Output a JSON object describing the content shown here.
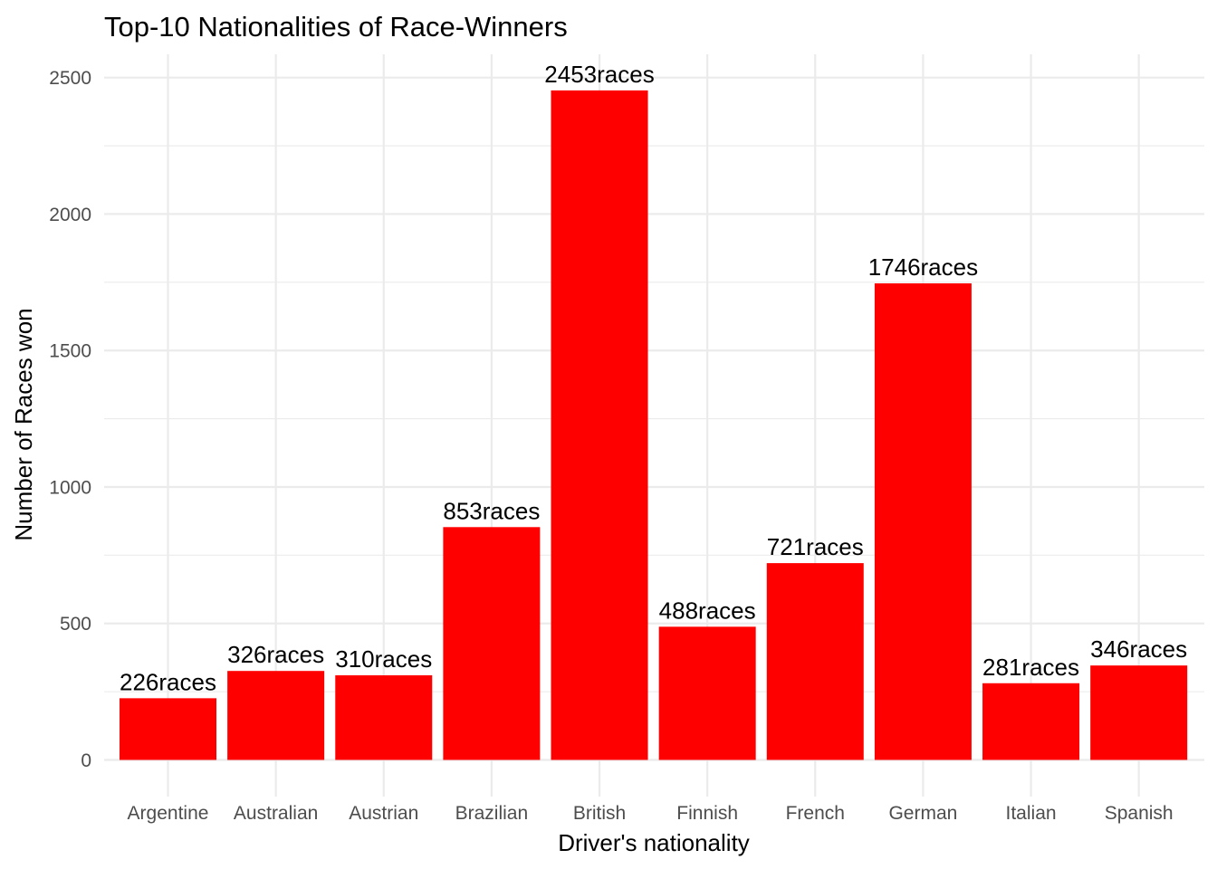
{
  "chart_data": {
    "type": "bar",
    "title": "Top-10 Nationalities of Race-Winners",
    "xlabel": "Driver's nationality",
    "ylabel": "Number of Races won",
    "categories": [
      "Argentine",
      "Australian",
      "Austrian",
      "Brazilian",
      "British",
      "Finnish",
      "French",
      "German",
      "Italian",
      "Spanish"
    ],
    "values": [
      226,
      326,
      310,
      853,
      2453,
      488,
      721,
      1746,
      281,
      346
    ],
    "data_labels": [
      "226races",
      "326races",
      "310races",
      "853races",
      "2453races",
      "488races",
      "721races",
      "1746races",
      "281races",
      "346races"
    ],
    "yticks": [
      0,
      500,
      1000,
      1500,
      2000,
      2500
    ],
    "ylim": [
      0,
      2576
    ],
    "grid": true,
    "legend": false,
    "bar_color": "#FF0000",
    "background_color": "#FFFFFF",
    "grid_color": "#EBEBEB"
  }
}
